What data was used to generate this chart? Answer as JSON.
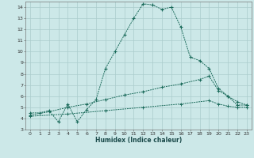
{
  "xlabel": "Humidex (Indice chaleur)",
  "bg_color": "#cce8e8",
  "grid_color": "#aacccc",
  "line_color": "#1a6a5a",
  "xlim": [
    -0.5,
    23.5
  ],
  "ylim": [
    3,
    14.5
  ],
  "xticks": [
    0,
    1,
    2,
    3,
    4,
    5,
    6,
    7,
    8,
    9,
    10,
    11,
    12,
    13,
    14,
    15,
    16,
    17,
    18,
    19,
    20,
    21,
    22,
    23
  ],
  "yticks": [
    3,
    4,
    5,
    6,
    7,
    8,
    9,
    10,
    11,
    12,
    13,
    14
  ],
  "line1_x": [
    0,
    1,
    2,
    3,
    4,
    5,
    6,
    7,
    8,
    9,
    10,
    11,
    12,
    13,
    14,
    15,
    16,
    17,
    18,
    19,
    20,
    21,
    22,
    23
  ],
  "line1_y": [
    4.5,
    4.5,
    4.7,
    3.7,
    5.3,
    3.7,
    4.8,
    5.7,
    8.5,
    10.0,
    11.5,
    13.0,
    14.3,
    14.2,
    13.8,
    14.0,
    12.2,
    9.5,
    9.2,
    8.5,
    6.7,
    6.0,
    5.2,
    5.2
  ],
  "line2_x": [
    0,
    2,
    4,
    6,
    8,
    10,
    12,
    14,
    16,
    18,
    19,
    20,
    21,
    22,
    23
  ],
  "line2_y": [
    4.3,
    4.6,
    5.0,
    5.3,
    5.7,
    6.1,
    6.4,
    6.8,
    7.1,
    7.5,
    7.8,
    6.5,
    6.0,
    5.5,
    5.2
  ],
  "line3_x": [
    0,
    4,
    8,
    12,
    16,
    19,
    20,
    21,
    22,
    23
  ],
  "line3_y": [
    4.2,
    4.4,
    4.7,
    5.0,
    5.3,
    5.6,
    5.3,
    5.1,
    5.0,
    5.0
  ]
}
